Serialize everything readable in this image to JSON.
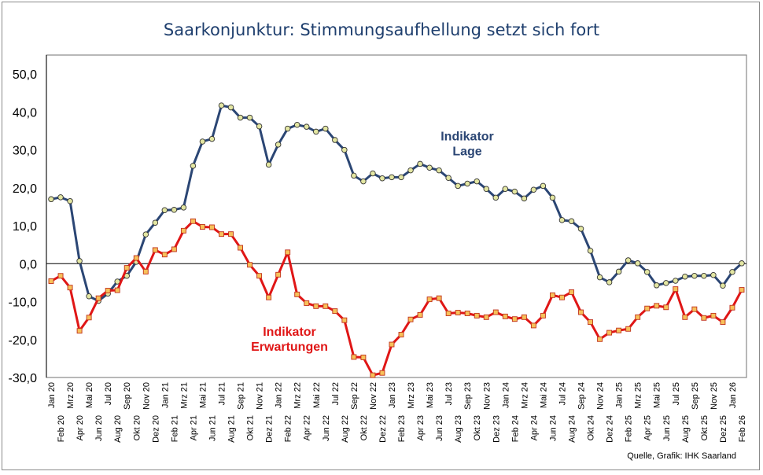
{
  "chart_data": {
    "type": "line",
    "title": "Saarkonjunktur: Stimmungsaufhellung setzt sich fort",
    "source": "Quelle, Grafik: IHK Saarland",
    "xlabel": "",
    "ylabel": "",
    "ylim": [
      -30,
      55
    ],
    "yticks": [
      -30,
      -20,
      -10,
      0,
      10,
      20,
      30,
      40,
      50
    ],
    "ytick_labels": [
      "-30,0",
      "-20,0",
      "-10,0",
      "0,0",
      "10,0",
      "20,0",
      "30,0",
      "40,0",
      "50,0"
    ],
    "grid": false,
    "zero_line": true,
    "categories": [
      "Jan 20",
      "Feb 20",
      "Mrz 20",
      "Apr 20",
      "Mai 20",
      "Jun 20",
      "Jul 20",
      "Aug 20",
      "Sep 20",
      "Okt 20",
      "Nov 20",
      "Dez 20",
      "Jan 21",
      "Feb 21",
      "Mrz 21",
      "Apr 21",
      "Mai 21",
      "Jun 21",
      "Jul 21",
      "Aug 21",
      "Sep 21",
      "Okt 21",
      "Nov 21",
      "Dez 21",
      "Jan 22",
      "Feb 22",
      "Mrz 22",
      "Apr 22",
      "Mai 22",
      "Jun 22",
      "Jul 22",
      "Aug 22",
      "Sep 22",
      "Okt 22",
      "Nov 22",
      "Dez 22",
      "Jan 23",
      "Feb 23",
      "Mrz 23",
      "Apr 23",
      "Mai 23",
      "Jun 23",
      "Jul 23",
      "Aug 23",
      "Sep 23",
      "Okt 23",
      "Nov 23",
      "Dez 23",
      "Jan 24",
      "Feb 24",
      "Mrz 24",
      "Apr 24",
      "Mai 24",
      "Jun 24",
      "Jul 24",
      "Aug 24",
      "Sep 24",
      "Okt 24",
      "Nov 24",
      "Dez 24",
      "Jan 25",
      "Feb 25",
      "Mrz 25",
      "Apr 25",
      "Mai 25",
      "Jun 25",
      "Jul 25",
      "Aug 25",
      "Sep 25",
      "Okt 25",
      "Nov 25",
      "Dez 25",
      "Jan 26",
      "Feb 26"
    ],
    "series": [
      {
        "name": "Indikator Lage",
        "color": "#2b4674",
        "marker": "circle",
        "marker_fill": "#e3e6a2",
        "label_lines": [
          "Indikator",
          "Lage"
        ],
        "values": [
          17.0,
          17.5,
          16.5,
          0.7,
          -8.6,
          -9.8,
          -7.9,
          -4.7,
          -3.2,
          0.5,
          7.7,
          10.8,
          14.1,
          14.2,
          14.8,
          25.8,
          32.2,
          32.9,
          41.7,
          41.2,
          38.5,
          38.5,
          36.2,
          26.1,
          31.4,
          35.6,
          36.6,
          36.1,
          34.8,
          35.6,
          32.6,
          30.0,
          23.2,
          21.7,
          23.8,
          22.5,
          22.8,
          22.8,
          24.6,
          26.3,
          25.3,
          24.6,
          22.6,
          20.5,
          21.1,
          21.7,
          19.7,
          17.4,
          19.7,
          19.0,
          17.2,
          19.5,
          20.5,
          17.4,
          11.5,
          11.2,
          9.2,
          3.4,
          -3.6,
          -4.9,
          -2.1,
          0.9,
          0.1,
          -2.2,
          -5.7,
          -5.1,
          -4.5,
          -3.4,
          -3.2,
          -3.2,
          -3.0,
          -5.8,
          -2.2,
          0.1
        ]
      },
      {
        "name": "Indikator Erwartungen",
        "color": "#e01616",
        "marker": "square",
        "marker_fill": "#f7c15a",
        "label_lines": [
          "Indikator",
          "Erwartungen"
        ],
        "values": [
          -4.6,
          -3.2,
          -6.3,
          -17.7,
          -14.2,
          -9.1,
          -7.1,
          -7.0,
          -1.1,
          1.5,
          -2.1,
          3.6,
          2.4,
          3.8,
          8.7,
          11.2,
          9.7,
          9.6,
          7.8,
          7.8,
          4.2,
          -0.3,
          -3.2,
          -8.9,
          -2.9,
          3.0,
          -8.1,
          -10.4,
          -11.2,
          -11.2,
          -12.5,
          -14.9,
          -24.6,
          -24.7,
          -29.4,
          -28.8,
          -21.3,
          -18.7,
          -14.7,
          -13.5,
          -9.4,
          -9.1,
          -13.1,
          -12.9,
          -13.1,
          -13.7,
          -14.1,
          -12.8,
          -13.9,
          -14.6,
          -14.1,
          -16.3,
          -13.7,
          -8.3,
          -8.9,
          -7.5,
          -12.8,
          -15.4,
          -19.9,
          -18.2,
          -17.6,
          -17.2,
          -14.1,
          -11.8,
          -11.1,
          -11.5,
          -6.7,
          -14.1,
          -12.0,
          -14.3,
          -13.7,
          -15.4,
          -11.6,
          -6.9
        ]
      }
    ]
  }
}
